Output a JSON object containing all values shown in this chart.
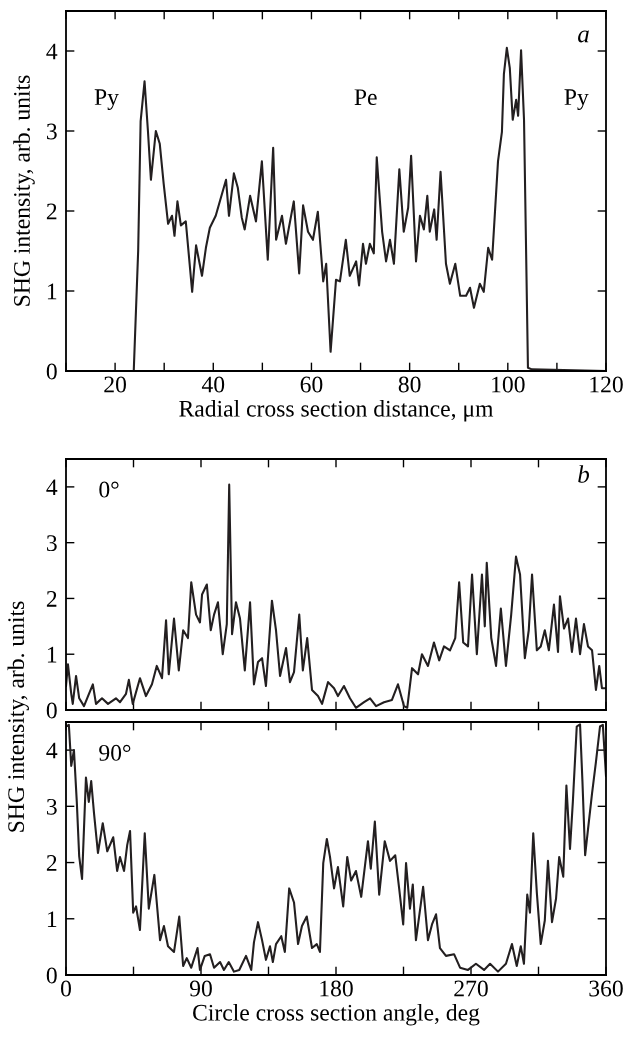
{
  "chart_data": [
    {
      "type": "line",
      "title": "a",
      "xlabel": "Radial cross section distance, μm",
      "ylabel": "SHG intensity, arb. units",
      "xlim": [
        10,
        120
      ],
      "ylim": [
        0,
        4.5
      ],
      "xticks": [
        {
          "value": 10,
          "label": null
        },
        20,
        {
          "value": 30,
          "label": null
        },
        40,
        {
          "value": 50,
          "label": null
        },
        60,
        {
          "value": 70,
          "label": null
        },
        80,
        {
          "value": 90,
          "label": null
        },
        100,
        {
          "value": 110,
          "label": null
        },
        120
      ],
      "yticks": [
        0,
        1,
        2,
        3,
        4
      ],
      "grid": false,
      "legend": false,
      "marker": "none",
      "line_style": "solid",
      "annotations": [
        "Py",
        "Pe",
        "Py"
      ],
      "series": [
        {
          "color": "#231f20",
          "x": [
            10,
            23.8,
            24.7,
            25.2,
            26.0,
            26.7,
            27.3,
            28.3,
            29.1,
            29.9,
            30.8,
            31.6,
            32.1,
            32.7,
            33.4,
            34.4,
            35.7,
            36.5,
            37.7,
            38.5,
            39.3,
            40.5,
            42.6,
            43.2,
            44.2,
            45.0,
            45.8,
            46.4,
            47.5,
            48.7,
            49.9,
            51.1,
            52.2,
            52.8,
            54.0,
            54.8,
            56.4,
            57.5,
            58.3,
            59.3,
            60.3,
            61.3,
            62.4,
            63.0,
            63.9,
            65.0,
            65.8,
            67.0,
            67.8,
            69.1,
            69.7,
            70.5,
            71.1,
            71.9,
            72.7,
            73.3,
            74.4,
            75.2,
            76.0,
            76.8,
            77.9,
            78.8,
            79.7,
            80.3,
            81.3,
            82.1,
            82.9,
            83.6,
            84.1,
            85.0,
            85.5,
            86.3,
            87.4,
            88.2,
            89.3,
            90.3,
            91.5,
            92.3,
            93.1,
            94.3,
            95.1,
            96.0,
            96.8,
            98.0,
            98.8,
            99.2,
            99.8,
            100.4,
            101.0,
            101.7,
            102.1,
            102.7,
            103.3,
            104.1,
            104.9,
            120
          ],
          "values": [
            0,
            0,
            1.5,
            3.12,
            3.62,
            2.99,
            2.39,
            3.0,
            2.84,
            2.34,
            1.84,
            1.94,
            1.69,
            2.12,
            1.82,
            1.87,
            0.99,
            1.57,
            1.19,
            1.54,
            1.79,
            1.94,
            2.39,
            1.94,
            2.47,
            2.29,
            1.92,
            1.77,
            2.19,
            1.87,
            2.62,
            1.39,
            2.79,
            1.64,
            1.94,
            1.59,
            2.12,
            1.22,
            2.07,
            1.74,
            1.64,
            1.99,
            1.12,
            1.34,
            0.24,
            1.14,
            1.12,
            1.64,
            1.19,
            1.37,
            1.07,
            1.59,
            1.34,
            1.59,
            1.47,
            2.67,
            1.74,
            1.37,
            1.64,
            1.34,
            2.52,
            1.74,
            2.04,
            2.69,
            1.37,
            1.94,
            1.77,
            2.19,
            1.74,
            2.02,
            1.64,
            2.49,
            1.34,
            1.09,
            1.34,
            0.94,
            0.94,
            1.04,
            0.79,
            1.09,
            0.99,
            1.54,
            1.39,
            2.62,
            2.99,
            3.71,
            4.04,
            3.79,
            3.14,
            3.39,
            3.19,
            4.01,
            3.14,
            0.04,
            0.02,
            0
          ]
        }
      ]
    },
    {
      "type": "line",
      "title": "b",
      "xlim": [
        0,
        360
      ],
      "ylim": [
        0,
        4.5
      ],
      "tick_labels": "y",
      "xticks": [
        0,
        {
          "value": 45,
          "label": null
        },
        90,
        {
          "value": 135,
          "label": null
        },
        180,
        {
          "value": 225,
          "label": null
        },
        270,
        {
          "value": 315,
          "label": null
        },
        360
      ],
      "yticks": [
        0,
        1,
        2,
        3,
        4
      ],
      "grid": false,
      "legend": false,
      "marker": "none",
      "line_style": "solid",
      "annotations": [
        "0°"
      ],
      "series": [
        {
          "color": "#231f20",
          "x": [
            0,
            1.3,
            3.5,
            4.5,
            6.7,
            8.8,
            12,
            14.7,
            17.9,
            20,
            24,
            28,
            33.3,
            36,
            40,
            41.9,
            44.5,
            49.3,
            53.3,
            57.3,
            60.5,
            64,
            66.7,
            68.5,
            72,
            75.2,
            78.1,
            81.3,
            83.5,
            86.7,
            89.3,
            90.7,
            93.9,
            96.5,
            98.7,
            101.3,
            104.5,
            107.2,
            108.8,
            110.7,
            113.3,
            116,
            119.2,
            122.7,
            125.3,
            128,
            130.7,
            133.3,
            137.3,
            140,
            142.7,
            146.7,
            149.3,
            152,
            155.5,
            157.9,
            160.8,
            164,
            168,
            170.7,
            174.7,
            178.7,
            181.3,
            185.3,
            189.3,
            193.3,
            198.7,
            202.7,
            206.7,
            212,
            217.3,
            221.3,
            225.3,
            227.5,
            230.7,
            234.7,
            237.3,
            241.3,
            245.3,
            248.8,
            252,
            256,
            259.5,
            262.1,
            264.8,
            268,
            270.7,
            273.9,
            277.3,
            279.2,
            280.5,
            283.5,
            286.7,
            289.9,
            293.3,
            296.8,
            300,
            302.7,
            305.9,
            308.5,
            310.7,
            313.9,
            316.5,
            319.2,
            321.9,
            325.3,
            328,
            329.3,
            332,
            334.7,
            337.3,
            340,
            342.7,
            345.3,
            348,
            350.7,
            353.3,
            355.5,
            357.3,
            360
          ],
          "values": [
            0.43,
            0.82,
            0.29,
            0.11,
            0.61,
            0.21,
            0.07,
            0.25,
            0.46,
            0.11,
            0.21,
            0.11,
            0.21,
            0.14,
            0.29,
            0.54,
            0.11,
            0.57,
            0.25,
            0.46,
            0.79,
            0.57,
            1.61,
            0.64,
            1.64,
            0.71,
            1.43,
            1.29,
            2.29,
            1.71,
            1.57,
            2.07,
            2.25,
            1.43,
            1.71,
            1.93,
            1.0,
            1.54,
            4.04,
            1.36,
            1.93,
            1.64,
            0.71,
            1.93,
            0.46,
            0.86,
            0.93,
            0.43,
            1.96,
            1.43,
            0.61,
            1.11,
            0.5,
            0.68,
            1.71,
            0.71,
            1.29,
            0.36,
            0.25,
            0.11,
            0.5,
            0.39,
            0.25,
            0.43,
            0.21,
            0.04,
            0.14,
            0.21,
            0.07,
            0.14,
            0.18,
            0.46,
            0.07,
            0.04,
            0.75,
            0.64,
            1.0,
            0.79,
            1.21,
            0.89,
            1.14,
            1.07,
            1.29,
            2.29,
            1.21,
            1.14,
            2.43,
            1.0,
            2.43,
            1.5,
            2.64,
            1.29,
            0.79,
            1.82,
            0.79,
            1.71,
            2.75,
            2.43,
            0.93,
            1.43,
            2.43,
            1.07,
            1.14,
            1.43,
            1.07,
            1.89,
            1.04,
            2.04,
            1.46,
            1.64,
            1.04,
            1.64,
            1.0,
            1.54,
            1.14,
            1.07,
            0.36,
            0.79,
            0.39,
            0.39
          ]
        }
      ]
    },
    {
      "type": "line",
      "xlabel": "Circle cross section angle, deg",
      "ylabel": "SHG intensity, arb. units",
      "xlim": [
        0,
        360
      ],
      "ylim": [
        0,
        4.5
      ],
      "xticks": [
        0,
        {
          "value": 45,
          "label": null
        },
        90,
        {
          "value": 135,
          "label": null
        },
        180,
        {
          "value": 225,
          "label": null
        },
        270,
        {
          "value": 315,
          "label": null
        },
        360
      ],
      "yticks": [
        0,
        1,
        2,
        3,
        4
      ],
      "grid": false,
      "legend": false,
      "marker": "none",
      "line_style": "solid",
      "annotations": [
        "90°"
      ],
      "series": [
        {
          "color": "#231f20",
          "x": [
            0,
            1.9,
            3.5,
            5.3,
            7.2,
            8.8,
            10.7,
            13.3,
            15.2,
            16.8,
            18.7,
            21.3,
            24.5,
            27.5,
            31.5,
            34.1,
            36,
            38.7,
            40.8,
            42.7,
            44.8,
            46.7,
            49.3,
            52.5,
            55.2,
            58.9,
            62.7,
            65.3,
            68,
            72,
            75.5,
            78.1,
            80.5,
            83.5,
            87.7,
            89.3,
            92.5,
            96,
            98.7,
            102.7,
            105.3,
            108.5,
            112,
            115.5,
            120,
            123.5,
            125.3,
            128,
            130.7,
            133.3,
            136,
            137.9,
            140,
            143.5,
            145.9,
            148.8,
            152,
            154.7,
            157.3,
            160.5,
            164,
            167.2,
            169.3,
            171.5,
            173.9,
            176,
            178.7,
            181.3,
            184.8,
            187.5,
            190.1,
            193.3,
            196.8,
            201.3,
            203.2,
            205.9,
            208.8,
            212.5,
            216,
            219.5,
            222.1,
            224.8,
            226.7,
            229.3,
            231.2,
            233.3,
            238.1,
            241.3,
            244,
            246.7,
            249.3,
            253.3,
            258.7,
            262.7,
            268,
            273.3,
            278.7,
            282.7,
            288,
            293.3,
            297.3,
            300.5,
            303.2,
            305.3,
            307.5,
            309.3,
            311.5,
            313.9,
            316.5,
            319.2,
            321.3,
            324,
            326.7,
            328.8,
            331.5,
            333.6,
            336,
            337.9,
            340.5,
            342.7,
            344.3,
            346.1,
            348,
            350.7,
            353.3,
            356,
            357.9,
            360
          ],
          "values": [
            4.42,
            4.45,
            3.72,
            4.0,
            3.08,
            2.11,
            1.71,
            3.51,
            3.08,
            3.45,
            2.87,
            2.17,
            2.7,
            2.2,
            2.45,
            1.85,
            2.1,
            1.85,
            2.31,
            2.56,
            1.11,
            1.22,
            0.8,
            2.52,
            1.18,
            1.78,
            0.62,
            0.87,
            0.51,
            0.41,
            1.04,
            0.16,
            0.3,
            0.13,
            0.48,
            0.09,
            0.34,
            0.37,
            0.13,
            0.23,
            0.09,
            0.23,
            0.06,
            0.09,
            0.34,
            0.09,
            0.58,
            0.94,
            0.62,
            0.27,
            0.51,
            0.23,
            0.55,
            0.69,
            0.41,
            1.54,
            1.29,
            0.55,
            0.87,
            1.04,
            0.48,
            0.55,
            0.41,
            1.99,
            2.42,
            2.1,
            1.54,
            1.92,
            1.22,
            2.1,
            1.68,
            1.85,
            1.39,
            2.38,
            1.89,
            2.73,
            1.43,
            2.38,
            2.03,
            2.13,
            1.54,
            0.9,
            1.99,
            1.18,
            1.61,
            0.62,
            1.57,
            0.62,
            0.9,
            1.08,
            0.48,
            0.34,
            0.37,
            0.13,
            0.09,
            0.2,
            0.09,
            0.2,
            0.06,
            0.2,
            0.55,
            0.16,
            0.51,
            0.2,
            1.43,
            1.11,
            2.52,
            1.46,
            0.55,
            0.97,
            2.03,
            0.94,
            1.36,
            2.1,
            1.75,
            3.37,
            2.24,
            3.08,
            4.42,
            4.46,
            3.44,
            2.13,
            2.59,
            3.23,
            3.79,
            4.42,
            4.45,
            3.54
          ]
        }
      ]
    }
  ]
}
